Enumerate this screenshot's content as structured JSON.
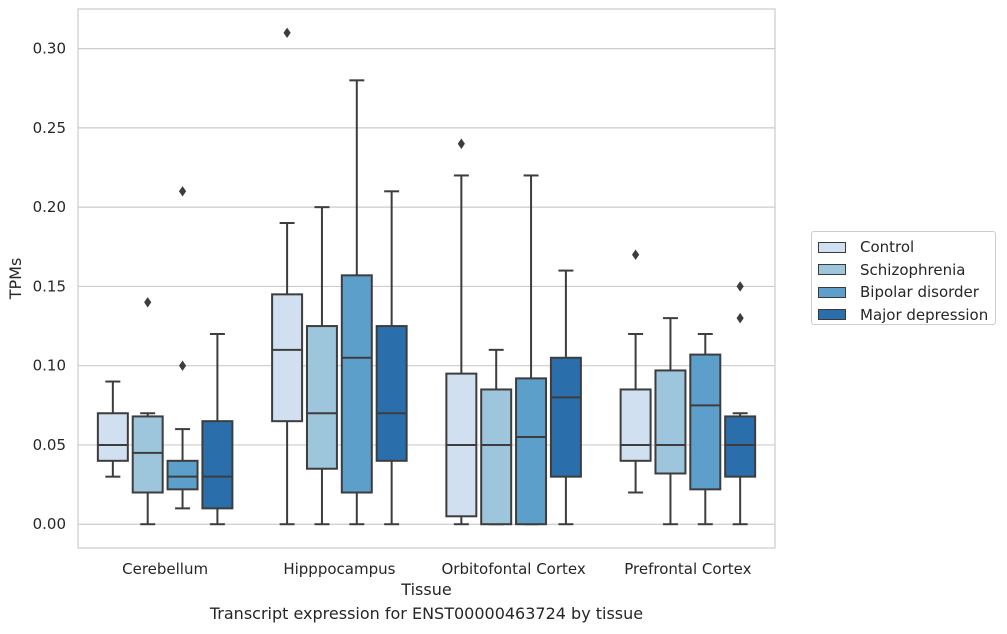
{
  "chart_data": {
    "type": "box",
    "xlabel": "Tissue",
    "ylabel": "TPMs",
    "caption": "Transcript expression for ENST00000463724 by tissue",
    "ylim": [
      -0.015,
      0.325
    ],
    "yticks": [
      "0.00",
      "0.05",
      "0.10",
      "0.15",
      "0.20",
      "0.25",
      "0.30"
    ],
    "grid": "horizontal",
    "legend_placement": "right",
    "categories": [
      "Cerebellum",
      "Hipppocampus",
      "Orbitofontal Cortex",
      "Prefrontal Cortex"
    ],
    "series": [
      {
        "name": "Control",
        "color": "#d0e0f0",
        "boxes": [
          {
            "whisker_low": 0.03,
            "q1": 0.04,
            "median": 0.05,
            "q3": 0.07,
            "whisker_high": 0.09,
            "outliers": []
          },
          {
            "whisker_low": 0.0,
            "q1": 0.065,
            "median": 0.11,
            "q3": 0.145,
            "whisker_high": 0.19,
            "outliers": [
              0.31
            ]
          },
          {
            "whisker_low": 0.0,
            "q1": 0.005,
            "median": 0.05,
            "q3": 0.095,
            "whisker_high": 0.22,
            "outliers": [
              0.24
            ]
          },
          {
            "whisker_low": 0.02,
            "q1": 0.04,
            "median": 0.05,
            "q3": 0.085,
            "whisker_high": 0.12,
            "outliers": [
              0.17
            ]
          }
        ]
      },
      {
        "name": "Schizophrenia",
        "color": "#9dc5dc",
        "boxes": [
          {
            "whisker_low": 0.0,
            "q1": 0.02,
            "median": 0.045,
            "q3": 0.068,
            "whisker_high": 0.07,
            "outliers": [
              0.14
            ]
          },
          {
            "whisker_low": 0.0,
            "q1": 0.035,
            "median": 0.07,
            "q3": 0.125,
            "whisker_high": 0.2,
            "outliers": []
          },
          {
            "whisker_low": 0.0,
            "q1": 0.0,
            "median": 0.05,
            "q3": 0.085,
            "whisker_high": 0.11,
            "outliers": []
          },
          {
            "whisker_low": 0.0,
            "q1": 0.032,
            "median": 0.05,
            "q3": 0.097,
            "whisker_high": 0.13,
            "outliers": []
          }
        ]
      },
      {
        "name": "Bipolar disorder",
        "color": "#5c9fcb",
        "boxes": [
          {
            "whisker_low": 0.01,
            "q1": 0.022,
            "median": 0.03,
            "q3": 0.04,
            "whisker_high": 0.06,
            "outliers": [
              0.1,
              0.21
            ]
          },
          {
            "whisker_low": 0.0,
            "q1": 0.02,
            "median": 0.105,
            "q3": 0.157,
            "whisker_high": 0.28,
            "outliers": []
          },
          {
            "whisker_low": 0.0,
            "q1": 0.0,
            "median": 0.055,
            "q3": 0.092,
            "whisker_high": 0.22,
            "outliers": []
          },
          {
            "whisker_low": 0.0,
            "q1": 0.022,
            "median": 0.075,
            "q3": 0.107,
            "whisker_high": 0.12,
            "outliers": []
          }
        ]
      },
      {
        "name": "Major depression",
        "color": "#2a6fab",
        "boxes": [
          {
            "whisker_low": 0.0,
            "q1": 0.01,
            "median": 0.03,
            "q3": 0.065,
            "whisker_high": 0.12,
            "outliers": []
          },
          {
            "whisker_low": 0.0,
            "q1": 0.04,
            "median": 0.07,
            "q3": 0.125,
            "whisker_high": 0.21,
            "outliers": []
          },
          {
            "whisker_low": 0.0,
            "q1": 0.03,
            "median": 0.08,
            "q3": 0.105,
            "whisker_high": 0.16,
            "outliers": []
          },
          {
            "whisker_low": 0.0,
            "q1": 0.03,
            "median": 0.05,
            "q3": 0.068,
            "whisker_high": 0.07,
            "outliers": [
              0.13,
              0.15
            ]
          }
        ]
      }
    ]
  }
}
